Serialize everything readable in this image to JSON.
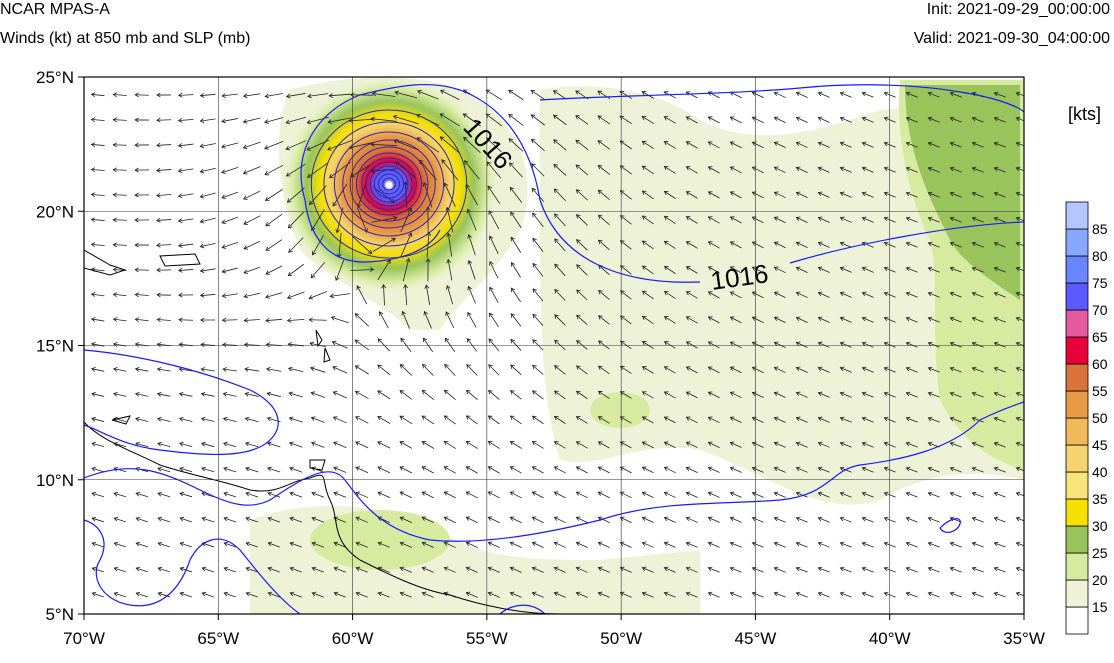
{
  "header": {
    "title": "NCAR MPAS-A",
    "subtitle": "Winds (kt) at 850 mb and SLP (mb)",
    "init": "Init: 2021-09-29_00:00:00",
    "valid": "Valid: 2021-09-30_04:00:00"
  },
  "map": {
    "lon_range": [
      -70,
      -35
    ],
    "lat_range": [
      5,
      25
    ],
    "lat_ticks": [
      "5°N",
      "10°N",
      "15°N",
      "20°N",
      "25°N"
    ],
    "lon_ticks": [
      "70°W",
      "65°W",
      "60°W",
      "55°W",
      "50°W",
      "45°W",
      "40°W",
      "35°W"
    ],
    "grid": true,
    "isobar_color": "#1a1aff",
    "coast_color": "#000000",
    "contour_labels": [
      "1016",
      "1016"
    ]
  },
  "colorbar": {
    "units": "[kts]",
    "labels": [
      "15",
      "20",
      "25",
      "30",
      "35",
      "40",
      "45",
      "50",
      "55",
      "60",
      "65",
      "70",
      "75",
      "80",
      "85"
    ],
    "colors": [
      "#ffffff",
      "#eef3d8",
      "#d6eaa0",
      "#99c45c",
      "#f5e000",
      "#f8e57a",
      "#f5d36e",
      "#f1b95a",
      "#e99a46",
      "#d9733a",
      "#e8003a",
      "#e45aa0",
      "#5a5aff",
      "#6a86ff",
      "#86a8ff",
      "#b4c6ff"
    ]
  }
}
